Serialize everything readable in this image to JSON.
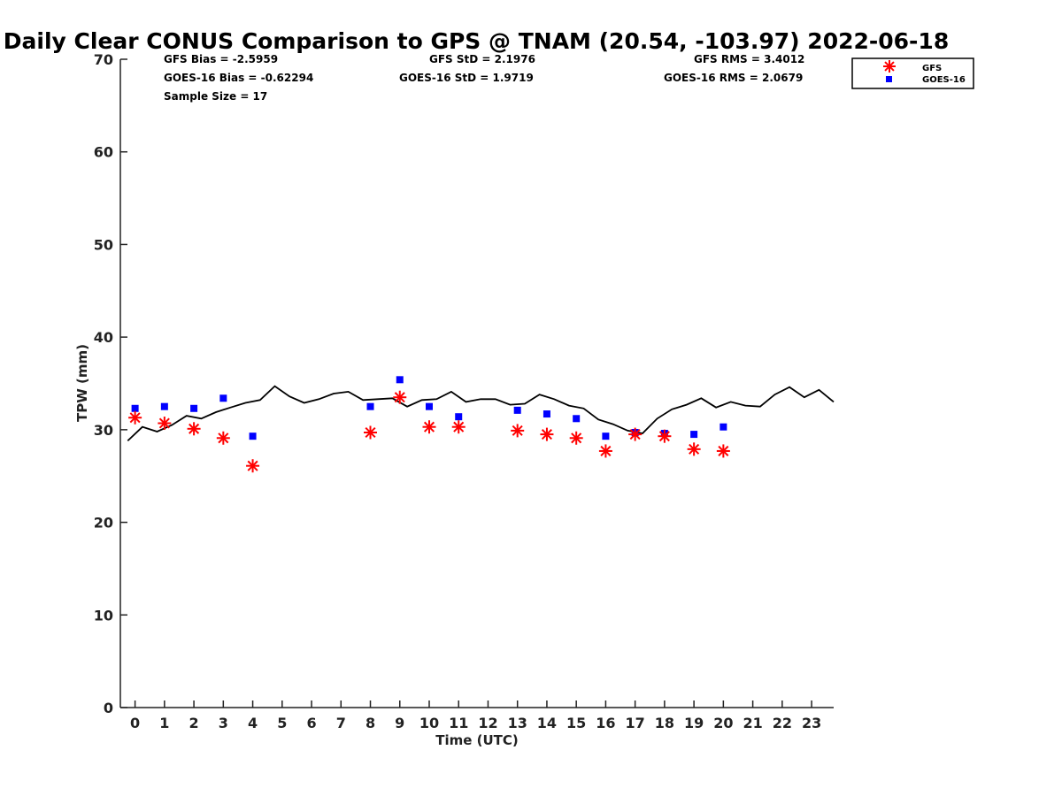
{
  "stats": {
    "gfs_bias": "GFS Bias = -2.5959",
    "gfs_std": "GFS StD = 2.1976",
    "gfs_rms": "GFS RMS = 3.4012",
    "goes_bias": "GOES-16 Bias = -0.62294",
    "goes_std": "GOES-16 StD = 1.9719",
    "goes_rms": "GOES-16 RMS = 2.0679",
    "sample_size": "Sample Size = 17"
  },
  "chart_data": {
    "type": "scatter",
    "title": "Daily Clear CONUS Comparison to GPS @ TNAM (20.54, -103.97) 2022-06-18",
    "xlabel": "Time (UTC)",
    "ylabel": "TPW (mm)",
    "xlim": [
      -0.5,
      23.75
    ],
    "ylim": [
      0,
      70
    ],
    "x_ticks": [
      0,
      1,
      2,
      3,
      4,
      5,
      6,
      7,
      8,
      9,
      10,
      11,
      12,
      13,
      14,
      15,
      16,
      17,
      18,
      19,
      20,
      21,
      22,
      23
    ],
    "y_ticks": [
      0,
      10,
      20,
      30,
      40,
      50,
      60,
      70
    ],
    "legend_position": "top-right, outside plot",
    "grid": false,
    "gps_line": {
      "color": "#000000",
      "x": [
        -0.25,
        0.25,
        0.75,
        1.25,
        1.75,
        2.25,
        2.75,
        3.25,
        3.75,
        4.25,
        4.75,
        5.25,
        5.75,
        6.25,
        6.75,
        7.25,
        7.75,
        8.25,
        8.75,
        9.25,
        9.75,
        10.25,
        10.75,
        11.25,
        11.75,
        12.25,
        12.75,
        13.25,
        13.75,
        14.25,
        14.75,
        15.25,
        15.75,
        16.25,
        16.75,
        17.25,
        17.75,
        18.25,
        18.75,
        19.25,
        19.75,
        20.25,
        20.75,
        21.25,
        21.75,
        22.25,
        22.75,
        23.25,
        23.75
      ],
      "y": [
        28.8,
        30.3,
        29.8,
        30.5,
        31.5,
        31.2,
        31.9,
        32.4,
        32.9,
        33.2,
        34.7,
        33.6,
        32.9,
        33.3,
        33.9,
        34.1,
        33.2,
        33.3,
        33.4,
        32.5,
        33.2,
        33.3,
        34.1,
        33.0,
        33.3,
        33.3,
        32.7,
        32.8,
        33.8,
        33.3,
        32.6,
        32.3,
        31.1,
        30.6,
        29.9,
        29.6,
        31.2,
        32.2,
        32.7,
        33.4,
        32.4,
        33.0,
        32.6,
        32.5,
        33.8,
        34.6,
        33.5,
        34.3,
        33.0
      ]
    },
    "series": [
      {
        "name": "GFS",
        "marker": "asterisk",
        "color": "#ff0000",
        "x": [
          0,
          1,
          2,
          3,
          4,
          8,
          9,
          10,
          11,
          13,
          14,
          15,
          16,
          17,
          18,
          19,
          20
        ],
        "y": [
          31.3,
          30.7,
          30.1,
          29.1,
          26.1,
          29.7,
          33.5,
          30.3,
          30.3,
          29.9,
          29.5,
          29.1,
          27.7,
          29.5,
          29.3,
          27.9,
          27.7
        ]
      },
      {
        "name": "GOES-16",
        "marker": "square",
        "color": "#0000ff",
        "x": [
          0,
          1,
          2,
          3,
          4,
          8,
          9,
          10,
          11,
          13,
          14,
          15,
          16,
          17,
          18,
          19,
          20
        ],
        "y": [
          32.3,
          32.5,
          32.3,
          33.4,
          29.3,
          32.5,
          35.4,
          32.5,
          31.4,
          32.1,
          31.7,
          31.2,
          29.3,
          29.7,
          29.6,
          29.5,
          30.3
        ]
      }
    ]
  }
}
